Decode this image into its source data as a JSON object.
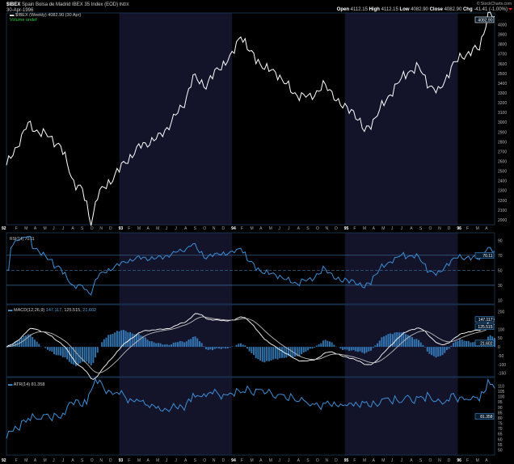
{
  "header": {
    "symbol": "$IBEX",
    "name": "Spain Bolsa de Madrid IBEX 35 Index (EOD)",
    "exchange": "INDX",
    "date": "30-Apr-1996",
    "watermark": "© StockCharts.com",
    "open_label": "Open",
    "open": "4112.15",
    "high_label": "High",
    "high": "4112.15",
    "low_label": "Low",
    "low": "4082.90",
    "close_label": "Close",
    "close": "4082.90",
    "chg_label": "Chg",
    "chg": "-41.41 (-1.00%)"
  },
  "colors": {
    "price": "#ffffff",
    "indicator": "#3d8fd6",
    "shade": "#13132a",
    "grid": "#1d3a5c"
  },
  "chart_data": [
    {
      "type": "line",
      "title": "$IBEX (Weekly) 4082.90 (30 Apr)",
      "legend2": "Volume undef",
      "ylim": [
        1950,
        4120
      ],
      "yticks": [
        2000,
        2100,
        2200,
        2300,
        2400,
        2500,
        2600,
        2700,
        2800,
        2900,
        3000,
        3100,
        3200,
        3300,
        3400,
        3500,
        3600,
        3700,
        3800,
        3900,
        4000
      ],
      "last_label": "4082.90",
      "x_unit": "week since Jan 1992",
      "keypoints": [
        [
          0,
          2560
        ],
        [
          3,
          2680
        ],
        [
          10,
          2980
        ],
        [
          15,
          2900
        ],
        [
          20,
          2850
        ],
        [
          25,
          2750
        ],
        [
          31,
          2390
        ],
        [
          35,
          2300
        ],
        [
          39,
          1980
        ],
        [
          42,
          2250
        ],
        [
          49,
          2430
        ],
        [
          55,
          2600
        ],
        [
          62,
          2760
        ],
        [
          70,
          2840
        ],
        [
          75,
          2970
        ],
        [
          82,
          3200
        ],
        [
          86,
          3460
        ],
        [
          92,
          3380
        ],
        [
          98,
          3560
        ],
        [
          104,
          3680
        ],
        [
          108,
          3910
        ],
        [
          112,
          3720
        ],
        [
          120,
          3540
        ],
        [
          125,
          3500
        ],
        [
          132,
          3300
        ],
        [
          140,
          3250
        ],
        [
          146,
          3380
        ],
        [
          151,
          3280
        ],
        [
          155,
          3150
        ],
        [
          160,
          3120
        ],
        [
          165,
          2900
        ],
        [
          170,
          3050
        ],
        [
          178,
          3330
        ],
        [
          185,
          3520
        ],
        [
          190,
          3560
        ],
        [
          195,
          3380
        ],
        [
          199,
          3300
        ],
        [
          205,
          3560
        ],
        [
          210,
          3680
        ],
        [
          214,
          3720
        ],
        [
          218,
          3760
        ],
        [
          222,
          4110
        ],
        [
          225,
          4083
        ]
      ]
    },
    {
      "type": "line",
      "title": "RSI(14) 70.11",
      "ylim": [
        5,
        100
      ],
      "yticks": [
        90,
        70,
        50,
        30,
        10
      ],
      "levels": [
        70,
        50,
        30
      ],
      "last_label": "70.11"
    },
    {
      "type": "line",
      "title": "MACD(12,26,9)",
      "values_text": [
        "147.117",
        "125.515",
        "21.602"
      ],
      "ylim": [
        -170,
        240
      ],
      "yticks": [
        200,
        100,
        50,
        0,
        -50,
        -100,
        -150
      ],
      "last_labels": [
        "147.117",
        "125.515",
        "21.602"
      ]
    },
    {
      "type": "line",
      "title": "ATR(14) 81.358",
      "ylim": [
        45,
        118
      ],
      "yticks": [
        110,
        105,
        100,
        95,
        90,
        85,
        80,
        75,
        70,
        65,
        60,
        55,
        50
      ],
      "last_label": "81.358"
    }
  ],
  "x_axis": {
    "labels": [
      "92",
      "F",
      "M",
      "A",
      "M",
      "J",
      "J",
      "A",
      "S",
      "O",
      "N",
      "D",
      "93",
      "F",
      "M",
      "A",
      "M",
      "J",
      "J",
      "A",
      "S",
      "O",
      "N",
      "D",
      "94",
      "F",
      "M",
      "A",
      "M",
      "J",
      "J",
      "A",
      "S",
      "O",
      "N",
      "D",
      "95",
      "F",
      "M",
      "A",
      "M",
      "J",
      "J",
      "A",
      "S",
      "O",
      "N",
      "D",
      "96",
      "F",
      "M",
      "A"
    ]
  }
}
